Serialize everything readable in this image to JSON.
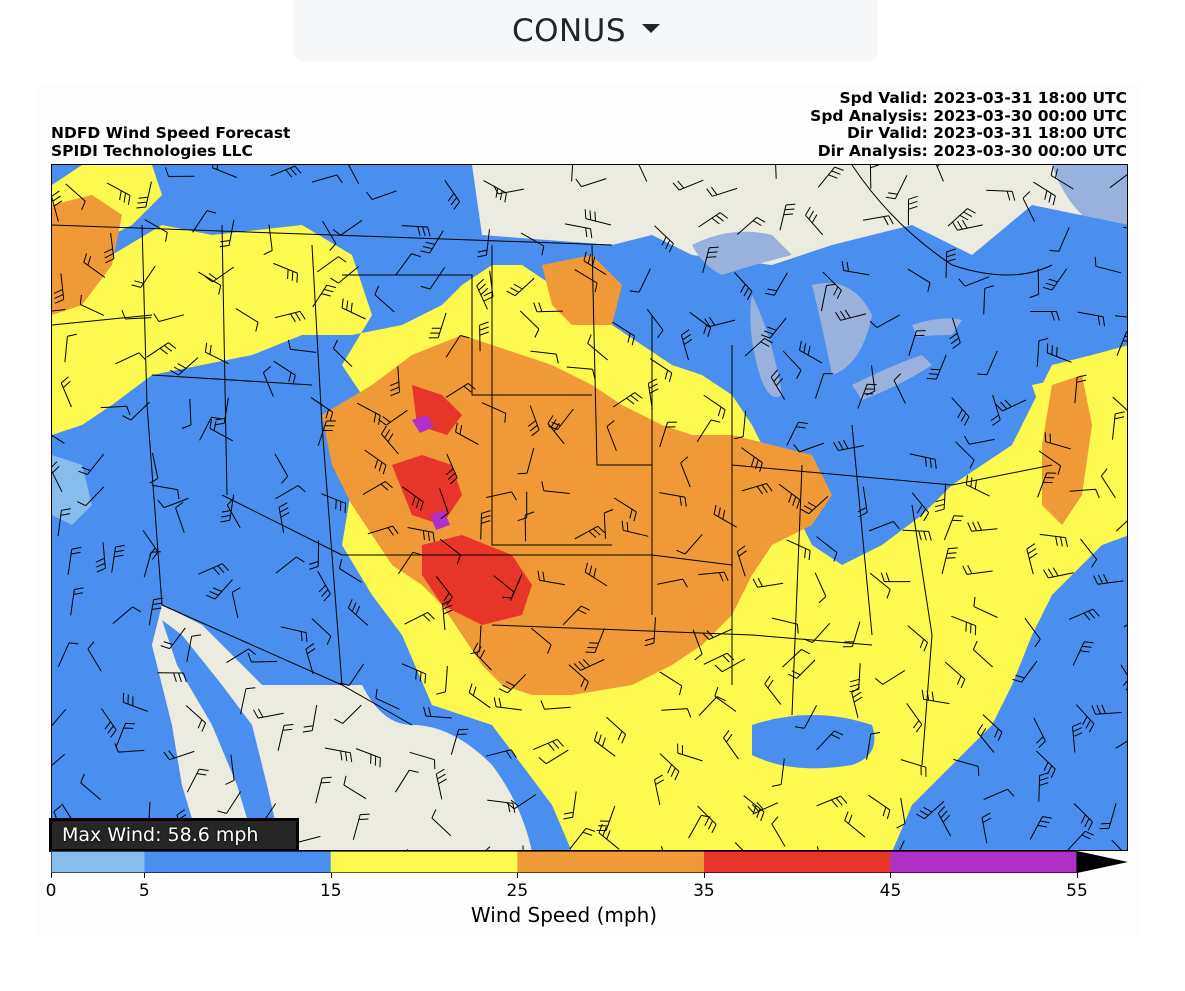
{
  "region_selector": {
    "label": "CONUS"
  },
  "header": {
    "title": "NDFD Wind Speed Forecast",
    "subtitle": "SPIDI Technologies LLC",
    "spd_valid": "Spd Valid: 2023-03-31 18:00 UTC",
    "spd_analysis": "Spd Analysis: 2023-03-30 00:00 UTC",
    "dir_valid": "Dir Valid: 2023-03-31 18:00 UTC",
    "dir_analysis": "Dir Analysis: 2023-03-30 00:00 UTC"
  },
  "max_wind": "Max Wind: 58.6 mph",
  "colorbar": {
    "title": "Wind Speed (mph)",
    "ticks": [
      "0",
      "5",
      "15",
      "25",
      "35",
      "45",
      "55"
    ],
    "bins": [
      {
        "from": 0,
        "to": 5,
        "color": "#86bdec"
      },
      {
        "from": 5,
        "to": 15,
        "color": "#4a8ef0"
      },
      {
        "from": 15,
        "to": 25,
        "color": "#fdf94f"
      },
      {
        "from": 25,
        "to": 35,
        "color": "#ef9a37"
      },
      {
        "from": 35,
        "to": 45,
        "color": "#e8352a"
      },
      {
        "from": 45,
        "to": 55,
        "color": "#b02fc6"
      }
    ],
    "extend_color": "#000000"
  },
  "colors": {
    "land": "#ecebe0",
    "water": "#98b1dd",
    "light_blue": "#86bdec",
    "blue": "#4a8ef0",
    "yellow": "#fdf94f",
    "orange": "#ef9a37",
    "red": "#e8352a",
    "purple": "#b02fc6"
  }
}
